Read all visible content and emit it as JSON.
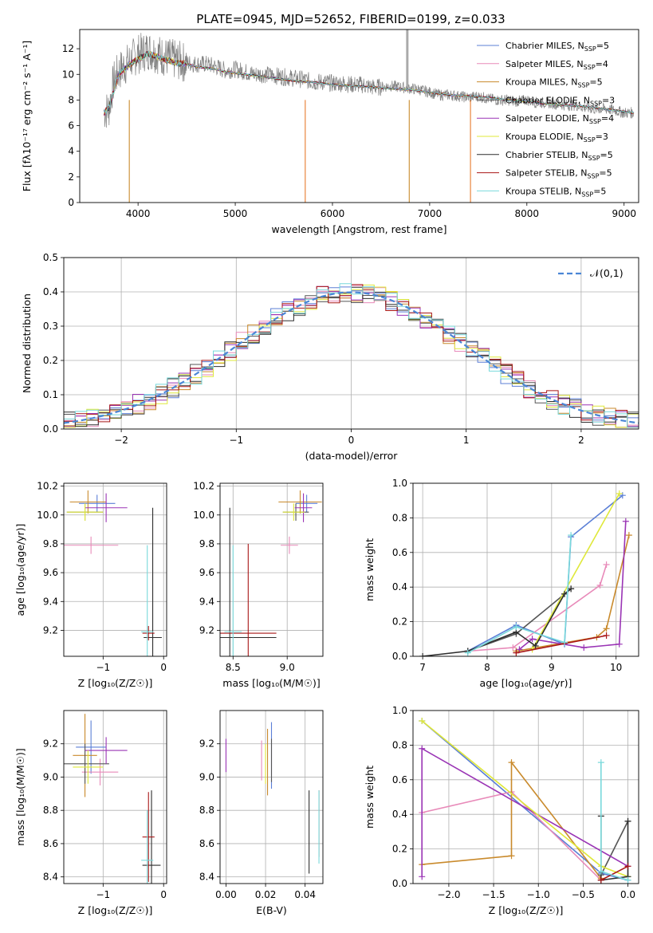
{
  "figure": {
    "title": "PLATE=0945, MJD=52652, FIBERID=0199, z=0.033"
  },
  "models": [
    {
      "name": "Chabrier MILES",
      "nssp": "5",
      "color": "#5b7fd6"
    },
    {
      "name": "Salpeter MILES",
      "nssp": "4",
      "color": "#e88ab9"
    },
    {
      "name": "Kroupa MILES",
      "nssp": "5",
      "color": "#c98a2c"
    },
    {
      "name": "Chabrier ELODIE",
      "nssp": "3",
      "color": "#555555"
    },
    {
      "name": "Salpeter ELODIE",
      "nssp": "4",
      "color": "#9a34b5"
    },
    {
      "name": "Kroupa ELODIE",
      "nssp": "3",
      "color": "#dfe83a"
    },
    {
      "name": "Chabrier STELIB",
      "nssp": "5",
      "color": "#2e2e2e"
    },
    {
      "name": "Salpeter STELIB",
      "nssp": "5",
      "color": "#a81616"
    },
    {
      "name": "Kroupa STELIB",
      "nssp": "5",
      "color": "#79d9db"
    }
  ],
  "legend_suffix": "SSP",
  "chart_data": [
    {
      "id": "spectrum",
      "type": "line",
      "xlabel": "wavelength [Angstrom, rest frame]",
      "ylabel": "Flux [fλ10⁻¹⁷ erg cm⁻² s⁻¹ A⁻¹]",
      "xlim": [
        3400,
        9150
      ],
      "ylim": [
        0,
        13.5
      ],
      "xticks": [
        4000,
        5000,
        6000,
        7000,
        8000,
        9000
      ],
      "yticks": [
        0,
        2,
        4,
        6,
        8,
        10,
        12
      ],
      "data_x": [
        3650,
        3700,
        3750,
        3800,
        3850,
        3900,
        3950,
        4000,
        4050,
        4100,
        4150,
        4200,
        4300,
        4400,
        4500,
        4600,
        4700,
        4800,
        4900,
        5000,
        5100,
        5200,
        5300,
        5400,
        5500,
        5600,
        5700,
        5800,
        5900,
        6000,
        6100,
        6200,
        6300,
        6400,
        6500,
        6600,
        6700,
        6800,
        6900,
        7000,
        7100,
        7200,
        7300,
        7400,
        7500,
        7600,
        7700,
        7800,
        7900,
        8000,
        8100,
        8200,
        8300,
        8400,
        8500,
        8600,
        8700,
        8800,
        8900,
        9000,
        9100
      ],
      "data_y": [
        7.1,
        7.3,
        9.5,
        10.2,
        10.6,
        10.9,
        11.3,
        11.6,
        11.7,
        11.9,
        11.8,
        11.6,
        11.3,
        11.1,
        10.9,
        10.8,
        10.8,
        10.6,
        10.3,
        10.4,
        10.2,
        10.0,
        10.0,
        9.9,
        9.8,
        9.7,
        9.6,
        9.4,
        9.4,
        9.3,
        9.3,
        9.2,
        9.2,
        9.0,
        9.0,
        9.1,
        9.0,
        8.9,
        8.8,
        8.6,
        8.4,
        8.4,
        8.3,
        8.2,
        8.3,
        8.1,
        8.0,
        8.0,
        7.9,
        8.0,
        7.8,
        7.8,
        7.7,
        7.6,
        7.6,
        7.4,
        7.3,
        7.3,
        7.2,
        7.0,
        7.0
      ],
      "model_x": [
        3650,
        3700,
        3800,
        3900,
        4000,
        4100,
        4200,
        4300,
        4400,
        4500,
        4600,
        4700,
        4800,
        4900,
        5000,
        5200,
        5400,
        5600,
        5800,
        6000,
        6200,
        6400,
        6600,
        6800,
        7000,
        7200,
        7400,
        7600,
        7800,
        8000,
        8200,
        8400,
        8600,
        8800,
        9000,
        9100
      ],
      "model_y": [
        7.0,
        7.4,
        10.0,
        10.7,
        11.2,
        11.6,
        11.4,
        11.1,
        10.9,
        10.8,
        10.6,
        10.5,
        10.4,
        10.2,
        10.1,
        9.9,
        9.7,
        9.5,
        9.4,
        9.2,
        9.1,
        9.0,
        8.9,
        8.8,
        8.6,
        8.4,
        8.3,
        8.2,
        8.0,
        7.9,
        7.7,
        7.6,
        7.5,
        7.3,
        7.1,
        7.0
      ]
    },
    {
      "id": "residuals",
      "type": "line",
      "xlabel": "(data-model)/error",
      "ylabel": "Normed distribution",
      "xlim": [
        -2.5,
        2.5
      ],
      "ylim": [
        0,
        0.5
      ],
      "xticks": [
        -2,
        -1,
        0,
        1,
        2
      ],
      "yticks": [
        0.0,
        0.1,
        0.2,
        0.3,
        0.4,
        0.5
      ],
      "legend": "𝒩(0,1)"
    },
    {
      "id": "z-age",
      "type": "scatter",
      "xlabel": "Z [log₁₀(Z/Z☉)]",
      "ylabel": "age  [log₁₀(age/yr)]",
      "xlim": [
        -1.65,
        0.05
      ],
      "ylim": [
        9.02,
        10.22
      ],
      "xticks": [
        -1,
        0
      ],
      "yticks": [
        9.2,
        9.4,
        9.6,
        9.8,
        10.0,
        10.2
      ],
      "points": [
        {
          "model": 0,
          "x": -1.1,
          "y": 10.08,
          "xerr": 0.3,
          "yerr": 0.06
        },
        {
          "model": 1,
          "x": -1.2,
          "y": 9.79,
          "xerr": 0.45,
          "yerr": 0.06
        },
        {
          "model": 2,
          "x": -1.25,
          "y": 10.09,
          "xerr": 0.3,
          "yerr": 0.08
        },
        {
          "model": 3,
          "x": -1.3,
          "y": 10.02,
          "xerr": 0.3,
          "yerr": 0.06
        },
        {
          "model": 4,
          "x": -0.95,
          "y": 10.05,
          "xerr": 0.35,
          "yerr": 0.1
        },
        {
          "model": 5,
          "x": -1.3,
          "y": 10.02,
          "xerr": 0.3,
          "yerr": 0.06
        },
        {
          "model": 6,
          "x": -0.18,
          "y": 9.15,
          "xerr": 0.15,
          "yerr": 0.9
        },
        {
          "model": 7,
          "x": -0.25,
          "y": 9.18,
          "xerr": 0.1,
          "yerr": 0.05
        },
        {
          "model": 8,
          "x": -0.27,
          "y": 9.19,
          "xerr": 0.1,
          "yerr": 0.6
        }
      ]
    },
    {
      "id": "mass-age",
      "type": "scatter",
      "xlabel": "mass [log₁₀(M/M☉)]",
      "ylabel": "",
      "xlim": [
        8.38,
        9.33
      ],
      "ylim": [
        9.02,
        10.22
      ],
      "xticks": [
        8.5,
        9.0
      ],
      "yticks": [
        9.2,
        9.4,
        9.6,
        9.8,
        10.0,
        10.2
      ],
      "points": [
        {
          "model": 0,
          "x": 9.18,
          "y": 10.08,
          "xerr": 0.1,
          "yerr": 0.06
        },
        {
          "model": 1,
          "x": 9.02,
          "y": 9.79,
          "xerr": 0.08,
          "yerr": 0.06
        },
        {
          "model": 2,
          "x": 9.12,
          "y": 10.09,
          "xerr": 0.2,
          "yerr": 0.08
        },
        {
          "model": 3,
          "x": 9.08,
          "y": 10.02,
          "xerr": 0.12,
          "yerr": 0.06
        },
        {
          "model": 4,
          "x": 9.15,
          "y": 10.05,
          "xerr": 0.08,
          "yerr": 0.1
        },
        {
          "model": 5,
          "x": 9.06,
          "y": 10.02,
          "xerr": 0.1,
          "yerr": 0.06
        },
        {
          "model": 6,
          "x": 8.47,
          "y": 9.15,
          "xerr": 0.43,
          "yerr": 0.9
        },
        {
          "model": 7,
          "x": 8.64,
          "y": 9.18,
          "xerr": 0.26,
          "yerr": 0.62
        },
        {
          "model": 8,
          "x": 8.5,
          "y": 9.19,
          "xerr": 0.08,
          "yerr": 0.6
        }
      ]
    },
    {
      "id": "age-weight",
      "type": "line",
      "xlabel": "age  [log₁₀(age/yr)]",
      "ylabel": "mass weight",
      "xlim": [
        6.85,
        10.35
      ],
      "ylim": [
        0,
        1.0
      ],
      "xticks": [
        7,
        8,
        9,
        10
      ],
      "yticks": [
        0.0,
        0.2,
        0.4,
        0.6,
        0.8,
        1.0
      ],
      "series": [
        {
          "model": 0,
          "x": [
            7.7,
            8.45,
            9.2,
            9.3,
            10.1
          ],
          "y": [
            0.03,
            0.18,
            0.07,
            0.69,
            0.93
          ]
        },
        {
          "model": 1,
          "x": [
            7.7,
            8.4,
            9.75,
            9.85
          ],
          "y": [
            0.03,
            0.05,
            0.41,
            0.53
          ]
        },
        {
          "model": 2,
          "x": [
            8.45,
            9.7,
            9.85,
            10.2
          ],
          "y": [
            0.03,
            0.11,
            0.16,
            0.7
          ]
        },
        {
          "model": 3,
          "x": [
            7.7,
            8.45,
            9.3
          ],
          "y": [
            0.03,
            0.13,
            0.39
          ]
        },
        {
          "model": 4,
          "x": [
            8.5,
            8.7,
            9.5,
            10.05,
            10.15
          ],
          "y": [
            0.04,
            0.1,
            0.05,
            0.07,
            0.78
          ]
        },
        {
          "model": 5,
          "x": [
            8.7,
            10.05
          ],
          "y": [
            0.04,
            0.94
          ]
        },
        {
          "model": 6,
          "x": [
            7.0,
            7.7,
            8.45,
            8.75,
            9.2,
            9.3
          ],
          "y": [
            0.0,
            0.03,
            0.14,
            0.06,
            0.36,
            0.39
          ]
        },
        {
          "model": 7,
          "x": [
            8.45,
            9.85
          ],
          "y": [
            0.02,
            0.12
          ]
        },
        {
          "model": 8,
          "x": [
            7.7,
            8.45,
            9.2,
            9.3
          ],
          "y": [
            0.02,
            0.17,
            0.08,
            0.7
          ]
        }
      ]
    },
    {
      "id": "z-mass",
      "type": "scatter",
      "xlabel": "Z [log₁₀(Z/Z☉)]",
      "ylabel": "mass [log₁₀(M/M☉)]",
      "xlim": [
        -1.65,
        0.05
      ],
      "ylim": [
        8.36,
        9.4
      ],
      "xticks": [
        -1,
        0
      ],
      "yticks": [
        8.4,
        8.6,
        8.8,
        9.0,
        9.2
      ],
      "points": [
        {
          "model": 0,
          "x": -1.2,
          "y": 9.18,
          "xerr": 0.25,
          "yerr": 0.16
        },
        {
          "model": 1,
          "x": -1.05,
          "y": 9.03,
          "xerr": 0.3,
          "yerr": 0.08
        },
        {
          "model": 2,
          "x": -1.3,
          "y": 9.13,
          "xerr": 0.2,
          "yerr": 0.25
        },
        {
          "model": 3,
          "x": -1.3,
          "y": 9.08,
          "xerr": 0.4,
          "yerr": 0.12
        },
        {
          "model": 4,
          "x": -0.95,
          "y": 9.16,
          "xerr": 0.35,
          "yerr": 0.08
        },
        {
          "model": 5,
          "x": -1.25,
          "y": 9.06,
          "xerr": 0.25,
          "yerr": 0.1
        },
        {
          "model": 6,
          "x": -0.2,
          "y": 8.47,
          "xerr": 0.15,
          "yerr": 0.45
        },
        {
          "model": 7,
          "x": -0.25,
          "y": 8.64,
          "xerr": 0.1,
          "yerr": 0.27
        },
        {
          "model": 8,
          "x": -0.27,
          "y": 8.5,
          "xerr": 0.1,
          "yerr": 0.3
        }
      ]
    },
    {
      "id": "ebv-mass",
      "type": "scatter",
      "xlabel": "E(B-V)",
      "ylabel": "",
      "xlim": [
        -0.003,
        0.049
      ],
      "ylim": [
        8.36,
        9.4
      ],
      "xticks": [
        0.0,
        0.02,
        0.04
      ],
      "yticks": [
        8.4,
        8.6,
        8.8,
        9.0,
        9.2
      ],
      "points": [
        {
          "model": 0,
          "x": 0.023,
          "y": 9.13,
          "yerr": 0.2
        },
        {
          "model": 1,
          "x": 0.018,
          "y": 9.1,
          "yerr": 0.12
        },
        {
          "model": 2,
          "x": 0.021,
          "y": 9.09,
          "yerr": 0.2
        },
        {
          "model": 3,
          "x": 0.023,
          "y": 9.1,
          "yerr": 0.13
        },
        {
          "model": 4,
          "x": 0.0,
          "y": 9.13,
          "yerr": 0.1
        },
        {
          "model": 5,
          "x": 0.02,
          "y": 9.08,
          "yerr": 0.12
        },
        {
          "model": 6,
          "x": 0.042,
          "y": 8.67,
          "yerr": 0.25
        },
        {
          "model": 7,
          "x": 0.047,
          "y": 8.72,
          "yerr": 0.2
        },
        {
          "model": 8,
          "x": 0.047,
          "y": 8.7,
          "yerr": 0.22
        }
      ]
    },
    {
      "id": "z-weight",
      "type": "line",
      "xlabel": "Z [log₁₀(Z/Z☉)]",
      "ylabel": "mass weight",
      "xlim": [
        -2.4,
        0.12
      ],
      "ylim": [
        0,
        1.0
      ],
      "xticks": [
        -2.0,
        -1.5,
        -1.0,
        -0.5,
        0.0
      ],
      "yticks": [
        0.0,
        0.2,
        0.4,
        0.6,
        0.8,
        1.0
      ],
      "series": [
        {
          "model": 0,
          "x": [
            -2.3,
            -0.3,
            0.0
          ],
          "y": [
            0.94,
            0.06,
            0.02
          ]
        },
        {
          "model": 1,
          "x": [
            -2.3,
            -1.3,
            -0.3
          ],
          "y": [
            0.41,
            0.53,
            0.02
          ]
        },
        {
          "model": 2,
          "x": [
            -2.3,
            -1.3,
            -1.3,
            -0.3
          ],
          "y": [
            0.11,
            0.16,
            0.7,
            0.03
          ]
        },
        {
          "model": 3,
          "x": [
            -0.3,
            0.0
          ],
          "y": [
            0.05,
            0.36
          ]
        },
        {
          "model": 4,
          "x": [
            -2.3,
            -2.3,
            0.0
          ],
          "y": [
            0.04,
            0.78,
            0.1
          ]
        },
        {
          "model": 5,
          "x": [
            -2.3,
            -0.3,
            0.0
          ],
          "y": [
            0.94,
            0.1,
            0.04
          ]
        },
        {
          "model": 6,
          "x": [
            -0.3,
            -0.3,
            0.0,
            0.0
          ],
          "y": [
            0.39,
            0.02,
            0.04,
            0.36
          ]
        },
        {
          "model": 7,
          "x": [
            -0.3,
            0.0
          ],
          "y": [
            0.02,
            0.1
          ]
        },
        {
          "model": 8,
          "x": [
            -0.3,
            -0.3,
            0.0
          ],
          "y": [
            0.7,
            0.07,
            0.02
          ]
        }
      ]
    }
  ]
}
